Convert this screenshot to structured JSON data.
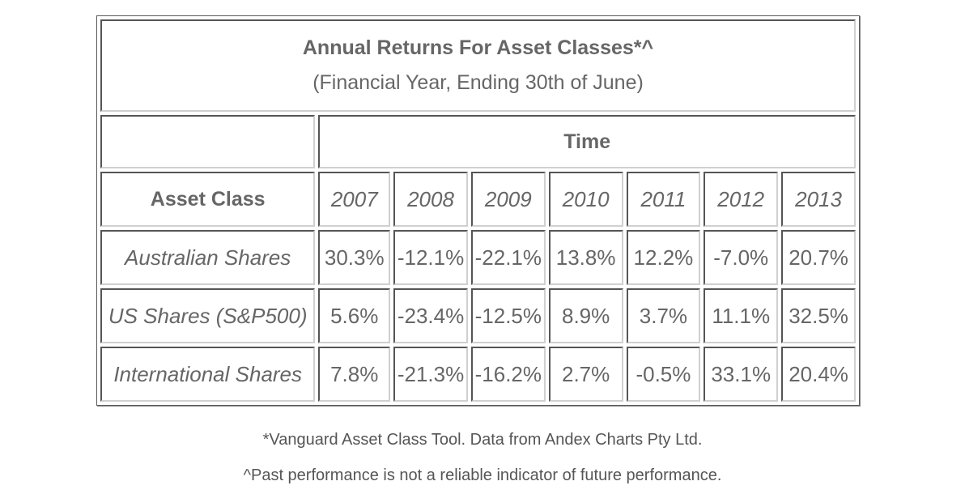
{
  "title": "Annual Returns For Asset Classes*^",
  "subtitle": "(Financial Year, Ending 30th of June)",
  "time_label": "Time",
  "asset_class_label": "Asset Class",
  "years": [
    "2007",
    "2008",
    "2009",
    "2010",
    "2011",
    "2012",
    "2013"
  ],
  "rows": [
    {
      "label": "Australian Shares",
      "values": [
        "30.3%",
        "-12.1%",
        "-22.1%",
        "13.8%",
        "12.2%",
        "-7.0%",
        "20.7%"
      ]
    },
    {
      "label": "US Shares (S&P500)",
      "values": [
        "5.6%",
        "-23.4%",
        "-12.5%",
        "8.9%",
        "3.7%",
        "11.1%",
        "32.5%"
      ]
    },
    {
      "label": "International Shares",
      "values": [
        "7.8%",
        "-21.3%",
        "-16.2%",
        "2.7%",
        "-0.5%",
        "33.1%",
        "20.4%"
      ]
    }
  ],
  "footnotes": [
    "*Vanguard Asset Class Tool. Data from Andex Charts Pty Ltd.",
    "^Past performance is not a reliable indicator of future performance."
  ],
  "colors": {
    "text": "#666666",
    "border_dark": "#555555",
    "border_light": "#d0d0d0"
  }
}
